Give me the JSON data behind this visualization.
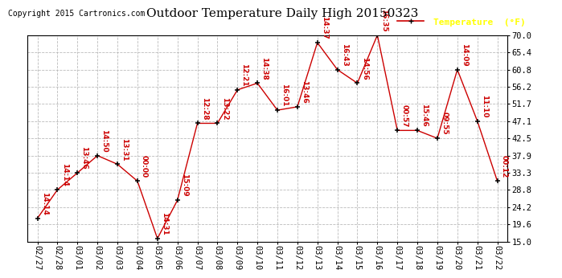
{
  "title": "Outdoor Temperature Daily High 20150323",
  "copyright": "Copyright 2015 Cartronics.com",
  "legend_label": "Temperature  (°F)",
  "dates": [
    "02/27",
    "02/28",
    "03/01",
    "03/02",
    "03/03",
    "03/04",
    "03/05",
    "03/06",
    "03/07",
    "03/08",
    "03/09",
    "03/10",
    "03/11",
    "03/12",
    "03/13",
    "03/14",
    "03/15",
    "03/16",
    "03/17",
    "03/18",
    "03/19",
    "03/20",
    "03/21",
    "03/22"
  ],
  "values": [
    21.2,
    28.8,
    33.3,
    37.9,
    35.6,
    31.1,
    15.8,
    26.0,
    46.5,
    46.5,
    55.4,
    57.2,
    50.0,
    50.9,
    68.0,
    60.8,
    57.2,
    70.0,
    44.6,
    44.6,
    42.5,
    60.8,
    47.1,
    31.1
  ],
  "time_labels": [
    "14:14",
    "14:14",
    "13:46",
    "14:50",
    "13:31",
    "00:00",
    "14:31",
    "15:09",
    "12:28",
    "13:22",
    "12:21",
    "14:38",
    "16:01",
    "13:46",
    "14:37",
    "16:43",
    "14:56",
    "16:35",
    "00:57",
    "15:46",
    "09:55",
    "14:09",
    "11:10",
    "00:12"
  ],
  "line_color": "#cc0000",
  "marker_color": "#000000",
  "background_color": "#ffffff",
  "grid_color": "#bbbbbb",
  "title_color": "#000000",
  "copyright_color": "#000000",
  "legend_bg": "#cc0000",
  "legend_text_color": "#ffff00",
  "ylim": [
    15.0,
    70.0
  ],
  "yticks": [
    15.0,
    19.6,
    24.2,
    28.8,
    33.3,
    37.9,
    42.5,
    47.1,
    51.7,
    56.2,
    60.8,
    65.4,
    70.0
  ],
  "title_fontsize": 11,
  "tick_fontsize": 7.5,
  "annotation_fontsize": 6.5,
  "annotation_color": "#cc0000",
  "copyright_fontsize": 7,
  "legend_fontsize": 8
}
